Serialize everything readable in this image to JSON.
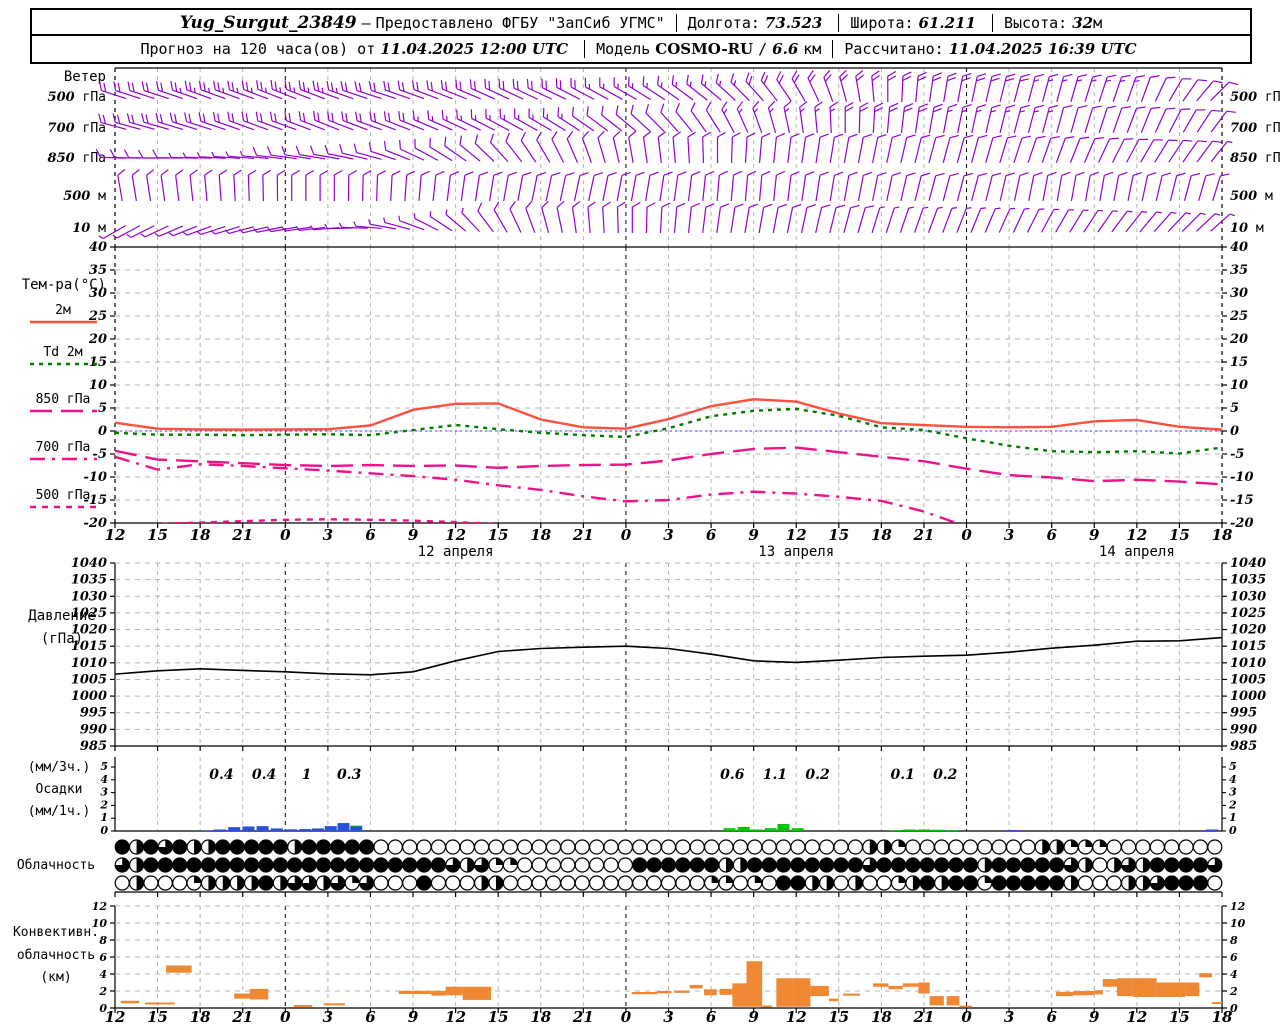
{
  "header": {
    "row1": {
      "station": "Yug_Surgut_23849",
      "dash": "—",
      "provider": "Предоставлено ФГБУ \"ЗапСиб УГМС\"",
      "lon_label": "Долгота:",
      "lon": "73.523",
      "lat_label": "Широта:",
      "lat": "61.211",
      "alt_label": "Высота:",
      "alt": "32",
      "alt_unit": "м"
    },
    "row2": {
      "prefix": "Прогноз на 120 часа(ов) от",
      "run": "11.04.2025 12:00 UTC",
      "model_label": "Модель",
      "model": "COSMO-RU",
      "res_sep": "/",
      "res": "6.6",
      "res_unit": "км",
      "calc_label": "Рассчитано:",
      "calc": "11.04.2025 16:39 UTC"
    }
  },
  "time_axis": {
    "hour_labels": [
      "12",
      "15",
      "18",
      "21",
      "0",
      "3",
      "6",
      "9",
      "12",
      "15",
      "18",
      "21",
      "0",
      "3",
      "6",
      "9",
      "12",
      "15",
      "18",
      "21",
      "0",
      "3",
      "6",
      "9",
      "12",
      "15",
      "18"
    ],
    "date_labels": [
      {
        "text": "12 апреля",
        "tick": 8
      },
      {
        "text": "13 апреля",
        "tick": 16
      },
      {
        "text": "14 апреля",
        "tick": 24
      }
    ],
    "day_boundary_ticks": [
      4,
      12,
      20
    ]
  },
  "chart_data": [
    {
      "type": "wind-barbs",
      "title": "Ветер",
      "barb_color": "#9400d3",
      "levels": [
        {
          "num": "500",
          "unit": "гПа"
        },
        {
          "num": "700",
          "unit": "гПа"
        },
        {
          "num": "850",
          "unit": "гПа"
        },
        {
          "num": "500",
          "unit": "м"
        },
        {
          "num": "10",
          "unit": "м"
        }
      ],
      "series": [
        {
          "level": "500 гПа",
          "dir": [
            288,
            288,
            290,
            290,
            292,
            290,
            288,
            290,
            292,
            295,
            295,
            298,
            300,
            305,
            310,
            318,
            330,
            345,
            360,
            368,
            372,
            375,
            375,
            378,
            380,
            395,
            410
          ],
          "spd": [
            22,
            22,
            23,
            25,
            25,
            23,
            22,
            20,
            20,
            18,
            18,
            18,
            15,
            15,
            15,
            18,
            18,
            20,
            22,
            22,
            20,
            18,
            15,
            15,
            12,
            12,
            10
          ]
        },
        {
          "level": "700 гПа",
          "dir": [
            285,
            286,
            288,
            290,
            290,
            292,
            290,
            292,
            295,
            298,
            300,
            305,
            310,
            318,
            328,
            340,
            352,
            360,
            365,
            370,
            372,
            375,
            375,
            378,
            382,
            390,
            400
          ],
          "spd": [
            18,
            20,
            20,
            22,
            22,
            20,
            18,
            18,
            15,
            15,
            15,
            12,
            12,
            12,
            12,
            15,
            15,
            18,
            18,
            18,
            15,
            15,
            12,
            12,
            10,
            10,
            10
          ]
        },
        {
          "level": "850 гПа",
          "dir": [
            272,
            270,
            272,
            275,
            278,
            280,
            285,
            295,
            305,
            318,
            330,
            340,
            350,
            355,
            360,
            365,
            368,
            370,
            372,
            375,
            375,
            378,
            380,
            385,
            390,
            395,
            400
          ],
          "spd": [
            8,
            8,
            7,
            7,
            8,
            8,
            8,
            8,
            8,
            10,
            10,
            10,
            12,
            12,
            12,
            12,
            12,
            12,
            10,
            10,
            10,
            10,
            8,
            8,
            8,
            8,
            7
          ]
        },
        {
          "level": "500 м",
          "dir": [
            350,
            352,
            355,
            358,
            360,
            360,
            362,
            365,
            368,
            370,
            372,
            372,
            370,
            368,
            365,
            365,
            368,
            370,
            372,
            375,
            375,
            372,
            370,
            370,
            372,
            375,
            378
          ],
          "spd": [
            8,
            8,
            8,
            10,
            10,
            10,
            10,
            10,
            12,
            12,
            12,
            12,
            10,
            10,
            10,
            12,
            12,
            12,
            12,
            10,
            10,
            8,
            8,
            8,
            8,
            8,
            8
          ]
        },
        {
          "level": "10 м",
          "dir": [
            240,
            245,
            250,
            255,
            260,
            265,
            275,
            290,
            310,
            330,
            345,
            355,
            360,
            365,
            368,
            370,
            372,
            375,
            378,
            380,
            382,
            385,
            390,
            395,
            400,
            405,
            410
          ],
          "spd": [
            5,
            5,
            5,
            5,
            6,
            6,
            6,
            7,
            7,
            8,
            8,
            8,
            8,
            8,
            8,
            8,
            8,
            8,
            7,
            7,
            6,
            6,
            5,
            5,
            5,
            5,
            5
          ]
        }
      ]
    },
    {
      "type": "line",
      "title": "Тем-ра(°C)",
      "ylim": [
        -20,
        40
      ],
      "ytick": 5,
      "zero_line_color": "#3c3cff",
      "series": [
        {
          "name": "2м",
          "color": "#ff4f3f",
          "dash": "solid",
          "values": [
            1.8,
            0.5,
            0.35,
            0.3,
            0.35,
            0.4,
            1.2,
            4.6,
            5.9,
            6.0,
            2.5,
            0.8,
            0.5,
            2.6,
            5.4,
            6.9,
            6.4,
            3.8,
            1.7,
            1.3,
            0.9,
            0.8,
            0.9,
            2.1,
            2.4,
            0.9,
            0.3
          ]
        },
        {
          "name": "Td 2м",
          "color": "#007a00",
          "dash": "dashed",
          "values": [
            -0.4,
            -0.8,
            -0.8,
            -0.9,
            -0.8,
            -0.7,
            -0.9,
            0.2,
            1.3,
            0.4,
            -0.4,
            -0.9,
            -1.3,
            0.6,
            3.2,
            4.4,
            4.8,
            3.3,
            0.8,
            0.2,
            -1.6,
            -3.2,
            -4.4,
            -4.6,
            -4.4,
            -4.9,
            -3.6
          ]
        },
        {
          "name": "850 гПа",
          "color": "#ee1289",
          "dash": "longdash",
          "values": [
            -4.3,
            -6.2,
            -6.6,
            -7.0,
            -7.4,
            -7.6,
            -7.4,
            -7.6,
            -7.5,
            -8.0,
            -7.6,
            -7.4,
            -7.3,
            -6.4,
            -5.0,
            -3.9,
            -3.6,
            -4.6,
            -5.6,
            -6.6,
            -8.2,
            -9.6,
            -10.1,
            -10.9,
            -10.6,
            -11.0,
            -11.6
          ]
        },
        {
          "name": "700 гПа",
          "color": "#ee1289",
          "dash": "dashdot",
          "values": [
            -5.6,
            -8.4,
            -7.2,
            -7.6,
            -8.1,
            -8.6,
            -9.2,
            -9.8,
            -10.6,
            -11.8,
            -12.8,
            -14.2,
            -15.3,
            -15.0,
            -13.8,
            -13.2,
            -13.6,
            -14.3,
            -15.2,
            -17.5,
            -20.8,
            -22.5,
            -23,
            -23,
            -23,
            -23,
            -23
          ]
        },
        {
          "name": "500 гПа",
          "color": "#ee1289",
          "dash": "shortdash",
          "values": [
            -20.8,
            -20.2,
            -19.9,
            -19.6,
            -19.3,
            -19.2,
            -19.3,
            -19.5,
            -19.8,
            -20.2,
            -20.6,
            -21.2,
            -22.5,
            -23.5,
            -24,
            -24,
            -24,
            -24,
            -24,
            -24,
            -24,
            -24,
            -24,
            -24,
            -24,
            -24,
            -24
          ]
        }
      ]
    },
    {
      "type": "line",
      "title_lines": [
        "Давление",
        "(гПа)"
      ],
      "ylim": [
        985,
        1040
      ],
      "ytick": 5,
      "color": "#000000",
      "values": [
        1006.6,
        1007.6,
        1008.2,
        1007.7,
        1007.3,
        1006.7,
        1006.4,
        1007.3,
        1010.6,
        1013.4,
        1014.3,
        1014.7,
        1015.0,
        1014.3,
        1012.6,
        1010.6,
        1010.1,
        1010.8,
        1011.6,
        1012.0,
        1012.3,
        1013.2,
        1014.4,
        1015.3,
        1016.5,
        1016.6,
        1017.6
      ]
    },
    {
      "type": "bar",
      "left_labels": [
        "(мм/3ч.)",
        "Осадки",
        "(мм/1ч.)"
      ],
      "ylim": [
        0,
        5
      ],
      "colors": {
        "b": "#2850d8",
        "g": "#00c400"
      },
      "sum_labels_3h": [
        {
          "i": 2.5,
          "v": "0.4"
        },
        {
          "i": 3.5,
          "v": "0.4"
        },
        {
          "i": 4.5,
          "v": "1"
        },
        {
          "i": 5.5,
          "v": "0.3"
        },
        {
          "i": 14.5,
          "v": "0.6"
        },
        {
          "i": 15.5,
          "v": "1.1"
        },
        {
          "i": 16.5,
          "v": "0.2"
        },
        {
          "i": 18.5,
          "v": "0.1"
        },
        {
          "i": 19.5,
          "v": "0.2"
        }
      ],
      "bars_1h": [
        {
          "h": 6.4,
          "v": 0.05,
          "c": "b"
        },
        {
          "h": 7.4,
          "v": 0.12,
          "c": "b"
        },
        {
          "h": 8.4,
          "v": 0.3,
          "c": "b"
        },
        {
          "h": 9.4,
          "v": 0.35,
          "c": "b"
        },
        {
          "h": 10.4,
          "v": 0.38,
          "c": "b"
        },
        {
          "h": 11.4,
          "v": 0.2,
          "c": "b"
        },
        {
          "h": 12.4,
          "v": 0.13,
          "c": "b"
        },
        {
          "h": 13.4,
          "v": 0.15,
          "c": "b"
        },
        {
          "h": 14.3,
          "v": 0.2,
          "c": "b"
        },
        {
          "h": 15.2,
          "v": 0.38,
          "c": "b"
        },
        {
          "h": 16.1,
          "v": 0.62,
          "c": "b"
        },
        {
          "h": 17.0,
          "v": 0.35,
          "c": "b",
          "cap": 0.07,
          "capc": "g"
        },
        {
          "h": 43.3,
          "v": 0.22,
          "c": "g"
        },
        {
          "h": 44.3,
          "v": 0.32,
          "c": "g"
        },
        {
          "h": 45.2,
          "v": 0.12,
          "c": "g"
        },
        {
          "h": 46.2,
          "v": 0.22,
          "c": "g"
        },
        {
          "h": 47.1,
          "v": 0.55,
          "c": "g"
        },
        {
          "h": 48.1,
          "v": 0.22,
          "c": "g"
        },
        {
          "h": 55.0,
          "v": 0.06,
          "c": "g"
        },
        {
          "h": 56.0,
          "v": 0.12,
          "c": "g"
        },
        {
          "h": 57.0,
          "v": 0.12,
          "c": "g"
        },
        {
          "h": 58.0,
          "v": 0.1,
          "c": "g"
        },
        {
          "h": 59.0,
          "v": 0.06,
          "c": "g"
        },
        {
          "h": 63.2,
          "v": 0.08,
          "c": "b"
        },
        {
          "h": 77.3,
          "v": 0.12,
          "c": "b"
        }
      ]
    },
    {
      "type": "cloud-cover",
      "title": "Облачность",
      "codes": "0=clear 1=quarter 2=half 3=three-quarter 4=overcast",
      "rows": [
        "42434224444424444400000000000000000000000000000000002210000000002211100000000",
        "32444444444444444444444323110000000044444422444444443444444424444432023244443",
        "02000122224233231300040002200000000000000110104422020012424414444420002234440"
      ]
    },
    {
      "type": "floating-bar",
      "title_lines": [
        "Конвективн.",
        "облачность",
        "(км)"
      ],
      "ylim": [
        0,
        12
      ],
      "ytick": 2,
      "color": "#ee8833",
      "segments_km": [
        [
          0.4,
          1.7,
          0.55,
          0.85
        ],
        [
          2.1,
          4.2,
          0.45,
          0.65
        ],
        [
          3.6,
          5.4,
          4.15,
          5.0
        ],
        [
          8.4,
          9.5,
          1.1,
          1.7
        ],
        [
          9.5,
          10.8,
          1.0,
          2.25
        ],
        [
          12.6,
          13.9,
          0.15,
          0.35
        ],
        [
          14.7,
          16.2,
          0.32,
          0.55
        ],
        [
          20.0,
          22.3,
          1.65,
          2.02
        ],
        [
          22.3,
          23.3,
          1.45,
          2.02
        ],
        [
          23.3,
          24.5,
          1.5,
          2.5
        ],
        [
          24.5,
          26.5,
          0.95,
          2.5
        ],
        [
          36.4,
          38.2,
          1.62,
          1.88
        ],
        [
          38.2,
          39.2,
          1.72,
          2.0
        ],
        [
          39.4,
          40.5,
          1.78,
          2.06
        ],
        [
          40.5,
          41.4,
          2.3,
          2.72
        ],
        [
          41.5,
          42.4,
          1.5,
          2.2
        ],
        [
          42.6,
          43.5,
          1.55,
          2.25
        ],
        [
          43.5,
          44.5,
          0.15,
          2.9
        ],
        [
          44.5,
          45.6,
          0.15,
          5.5
        ],
        [
          45.6,
          46.3,
          0.1,
          0.3
        ],
        [
          46.6,
          47.8,
          0.15,
          3.5
        ],
        [
          47.8,
          49.0,
          0.15,
          3.5
        ],
        [
          49.0,
          50.3,
          1.4,
          2.6
        ],
        [
          50.3,
          51.0,
          0.8,
          1.1
        ],
        [
          51.3,
          52.5,
          1.45,
          1.7
        ],
        [
          53.4,
          54.5,
          2.5,
          2.9
        ],
        [
          54.5,
          55.5,
          2.2,
          2.6
        ],
        [
          55.5,
          56.6,
          2.5,
          2.9
        ],
        [
          56.6,
          57.4,
          1.7,
          3.0
        ],
        [
          57.4,
          58.4,
          0.3,
          1.4
        ],
        [
          58.6,
          59.5,
          0.3,
          1.4
        ],
        [
          59.5,
          60.4,
          0.12,
          0.28
        ],
        [
          66.3,
          67.5,
          1.4,
          1.9
        ],
        [
          67.5,
          69.0,
          1.5,
          2.0
        ],
        [
          69.0,
          69.6,
          1.6,
          2.1
        ],
        [
          69.6,
          70.6,
          2.5,
          3.4
        ],
        [
          70.6,
          71.7,
          1.4,
          3.5
        ],
        [
          71.7,
          73.4,
          1.3,
          3.5
        ],
        [
          73.4,
          75.4,
          1.3,
          3.0
        ],
        [
          75.4,
          76.4,
          1.4,
          3.0
        ],
        [
          76.4,
          77.3,
          3.6,
          4.1
        ],
        [
          77.3,
          78.0,
          0.5,
          0.7
        ]
      ]
    }
  ]
}
